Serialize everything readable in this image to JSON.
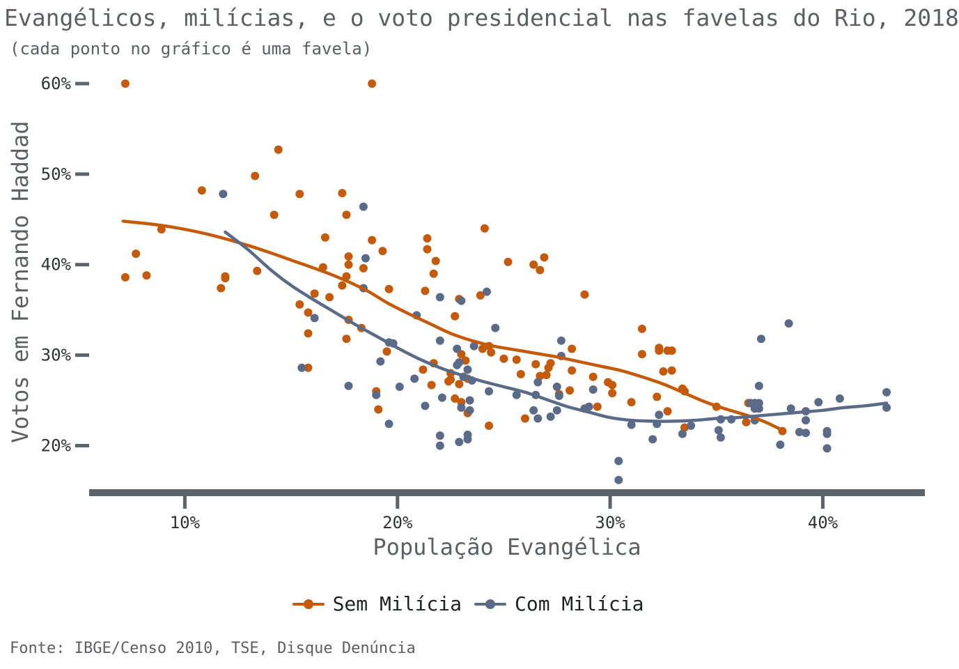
{
  "title": "Evangélicos, milícias, e o voto presidencial nas favelas do Rio, 2018",
  "subtitle": "(cada ponto no gráfico é uma favela)",
  "caption": "Fonte: IBGE/Censo 2010, TSE, Disque Denúncia",
  "chart_data": {
    "type": "scatter",
    "title": "Evangélicos, milícias, e o voto presidencial nas favelas do Rio, 2018",
    "subtitle": "(cada ponto no gráfico é uma favela)",
    "xlabel": "População Evangélica",
    "ylabel": "Votos em Fernando Haddad",
    "xlim": [
      5.5,
      44.8
    ],
    "ylim": [
      14.8,
      62
    ],
    "x_ticks": [
      10,
      20,
      30,
      40
    ],
    "x_tick_labels": [
      "10%",
      "20%",
      "30%",
      "40%"
    ],
    "y_ticks": [
      20,
      30,
      40,
      50,
      60
    ],
    "y_tick_labels": [
      "20%",
      "30%",
      "40%",
      "50%",
      "60%"
    ],
    "grid": false,
    "legend_position": "bottom",
    "series": [
      {
        "name": "Sem Milícia",
        "color": "#c45a0a",
        "points": [
          [
            7.2,
            60
          ],
          [
            18.8,
            60
          ],
          [
            14.4,
            52.7
          ],
          [
            13.3,
            49.8
          ],
          [
            10.8,
            48.2
          ],
          [
            15.4,
            47.8
          ],
          [
            17.4,
            47.9
          ],
          [
            14.2,
            45.5
          ],
          [
            17.6,
            45.5
          ],
          [
            24.1,
            44
          ],
          [
            8.9,
            43.9
          ],
          [
            16.6,
            43
          ],
          [
            21.4,
            42.9
          ],
          [
            18.8,
            42.7
          ],
          [
            7.7,
            41.2
          ],
          [
            19.3,
            41.5
          ],
          [
            21.4,
            41.7
          ],
          [
            26.9,
            40.8
          ],
          [
            17.7,
            40.9
          ],
          [
            25.2,
            40.3
          ],
          [
            21.8,
            40.4
          ],
          [
            26.4,
            40
          ],
          [
            16.5,
            39.7
          ],
          [
            17.7,
            40
          ],
          [
            18.4,
            39.6
          ],
          [
            26.7,
            39.4
          ],
          [
            21.7,
            39
          ],
          [
            13.4,
            39.3
          ],
          [
            8.2,
            38.8
          ],
          [
            7.2,
            38.6
          ],
          [
            11.9,
            38.7
          ],
          [
            17.6,
            38.7
          ],
          [
            11.9,
            38.5
          ],
          [
            17.4,
            37.7
          ],
          [
            11.7,
            37.4
          ],
          [
            19.6,
            37.3
          ],
          [
            21.3,
            37.1
          ],
          [
            23.9,
            36.6
          ],
          [
            28.8,
            36.7
          ],
          [
            16.1,
            36.8
          ],
          [
            16.8,
            36.4
          ],
          [
            22.9,
            36.2
          ],
          [
            15.4,
            35.6
          ],
          [
            15.8,
            34.7
          ],
          [
            22.7,
            34.3
          ],
          [
            17.7,
            33.9
          ],
          [
            18.3,
            33
          ],
          [
            31.5,
            32.9
          ],
          [
            15.8,
            32.4
          ],
          [
            17.6,
            31.8
          ],
          [
            24.3,
            31
          ],
          [
            24,
            30.7
          ],
          [
            24.4,
            30.3
          ],
          [
            28.2,
            30.7
          ],
          [
            32.3,
            30.8
          ],
          [
            32.3,
            30.5
          ],
          [
            32.7,
            30.5
          ],
          [
            32.9,
            30.5
          ],
          [
            19.5,
            30.4
          ],
          [
            31.5,
            30.1
          ],
          [
            23,
            30.1
          ],
          [
            25,
            29.6
          ],
          [
            25.6,
            29.5
          ],
          [
            23.2,
            29.4
          ],
          [
            21.7,
            29.1
          ],
          [
            26.5,
            29
          ],
          [
            27.2,
            29.1
          ],
          [
            27.1,
            28.6
          ],
          [
            28.2,
            28.3
          ],
          [
            32.9,
            28.3
          ],
          [
            32.5,
            28.2
          ],
          [
            15.8,
            28.6
          ],
          [
            21.2,
            28.4
          ],
          [
            22.5,
            28
          ],
          [
            25.8,
            27.9
          ],
          [
            26.7,
            27.7
          ],
          [
            27,
            27.8
          ],
          [
            29.2,
            27.6
          ],
          [
            22.5,
            27.3
          ],
          [
            22.4,
            27.1
          ],
          [
            23.3,
            27.4
          ],
          [
            22.9,
            26.8
          ],
          [
            21.6,
            26.7
          ],
          [
            29.9,
            27
          ],
          [
            30.1,
            26.7
          ],
          [
            33.4,
            26.3
          ],
          [
            33.5,
            26
          ],
          [
            28.1,
            26.1
          ],
          [
            19.0,
            26
          ],
          [
            30.1,
            25.8
          ],
          [
            32.2,
            25.4
          ],
          [
            27.6,
            25.7
          ],
          [
            22.7,
            25.2
          ],
          [
            23.0,
            24.8
          ],
          [
            36.5,
            24.7
          ],
          [
            31.0,
            24.8
          ],
          [
            29.4,
            24.3
          ],
          [
            35.0,
            24.3
          ],
          [
            19.1,
            24
          ],
          [
            32.7,
            23.8
          ],
          [
            23.3,
            23.6
          ],
          [
            26.0,
            23
          ],
          [
            36.4,
            22.6
          ],
          [
            33.5,
            22
          ],
          [
            24.3,
            22.2
          ],
          [
            38.1,
            21.6
          ]
        ]
      },
      {
        "name": "Com Milícia",
        "color": "#5a6b8a",
        "points": [
          [
            11.8,
            47.8
          ],
          [
            18.4,
            46.4
          ],
          [
            18.5,
            40.7
          ],
          [
            24.2,
            37
          ],
          [
            18.4,
            37.4
          ],
          [
            22.0,
            36.4
          ],
          [
            23,
            36
          ],
          [
            20.9,
            34.4
          ],
          [
            16.1,
            34.1
          ],
          [
            24.6,
            33
          ],
          [
            38.4,
            33.5
          ],
          [
            37.1,
            31.8
          ],
          [
            27.7,
            31.6
          ],
          [
            19.6,
            31.4
          ],
          [
            19.8,
            31.3
          ],
          [
            22.0,
            31.6
          ],
          [
            23.6,
            31
          ],
          [
            22.8,
            30.7
          ],
          [
            27.7,
            29.9
          ],
          [
            19.2,
            29.3
          ],
          [
            22.9,
            29.2
          ],
          [
            22.8,
            28.9
          ],
          [
            23.3,
            28.4
          ],
          [
            15.5,
            28.6
          ],
          [
            20.8,
            27.4
          ],
          [
            23.1,
            27.6
          ],
          [
            26.6,
            27
          ],
          [
            23.5,
            27.2
          ],
          [
            17.7,
            26.6
          ],
          [
            20.1,
            26.5
          ],
          [
            37,
            26.6
          ],
          [
            27.5,
            26.5
          ],
          [
            24.3,
            26
          ],
          [
            29.2,
            26.2
          ],
          [
            25.6,
            25.6
          ],
          [
            26.5,
            25.6
          ],
          [
            27.6,
            25.5
          ],
          [
            19,
            25.6
          ],
          [
            22.1,
            25.3
          ],
          [
            23.4,
            25
          ],
          [
            36.6,
            24.7
          ],
          [
            36.8,
            24.7
          ],
          [
            37,
            24.7
          ],
          [
            21.3,
            24.4
          ],
          [
            29.0,
            24.3
          ],
          [
            36.8,
            24.1
          ],
          [
            37,
            24.1
          ],
          [
            38.5,
            24.1
          ],
          [
            39.2,
            23.8
          ],
          [
            23.0,
            24.2
          ],
          [
            23.4,
            23.9
          ],
          [
            26.4,
            23.9
          ],
          [
            27.5,
            23.9
          ],
          [
            28.8,
            24.1
          ],
          [
            32.3,
            23.4
          ],
          [
            27.2,
            23.2
          ],
          [
            26.6,
            23
          ],
          [
            35.2,
            22.9
          ],
          [
            35.7,
            22.9
          ],
          [
            36.8,
            22.8
          ],
          [
            39.2,
            22.8
          ],
          [
            31.0,
            22.3
          ],
          [
            32.2,
            22.4
          ],
          [
            33.8,
            22.2
          ],
          [
            35.1,
            21.7
          ],
          [
            38.9,
            21.5
          ],
          [
            39.2,
            21.4
          ],
          [
            40.2,
            21.6
          ],
          [
            40.2,
            21.3
          ],
          [
            33.4,
            21.3
          ],
          [
            23.3,
            21.2
          ],
          [
            22.0,
            21.1
          ],
          [
            35.2,
            20.9
          ],
          [
            23.3,
            20.7
          ],
          [
            32.0,
            20.7
          ],
          [
            22.9,
            20.4
          ],
          [
            22,
            20
          ],
          [
            38,
            20.1
          ],
          [
            40.2,
            19.7
          ],
          [
            19.6,
            22.4
          ],
          [
            30.4,
            18.3
          ],
          [
            30.4,
            16.2
          ],
          [
            39.8,
            24.8
          ],
          [
            40.8,
            25.2
          ],
          [
            43,
            25.9
          ],
          [
            43,
            24.2
          ]
        ]
      }
    ],
    "trend_lines": [
      {
        "name": "Sem Milícia",
        "color": "#c45a0a",
        "points": [
          [
            7.1,
            44.8
          ],
          [
            9,
            44.3
          ],
          [
            11,
            43.4
          ],
          [
            13,
            42.1
          ],
          [
            15,
            40.5
          ],
          [
            17,
            38.8
          ],
          [
            18.5,
            37.2
          ],
          [
            19.5,
            35.8
          ],
          [
            20.5,
            34.6
          ],
          [
            21.5,
            33.5
          ],
          [
            22.5,
            32.4
          ],
          [
            23.5,
            31.6
          ],
          [
            24.5,
            31
          ],
          [
            25.5,
            30.6
          ],
          [
            26.5,
            30.2
          ],
          [
            27.5,
            29.8
          ],
          [
            28.5,
            29.3
          ],
          [
            29.5,
            28.8
          ],
          [
            30.5,
            28.3
          ],
          [
            31.5,
            27.6
          ],
          [
            32.5,
            26.8
          ],
          [
            33.5,
            25.8
          ],
          [
            34.5,
            24.8
          ],
          [
            35.5,
            24
          ],
          [
            36.5,
            23.3
          ],
          [
            37.3,
            22.6
          ],
          [
            38.1,
            21.7
          ]
        ]
      },
      {
        "name": "Com Milícia",
        "color": "#5a6b8a",
        "points": [
          [
            11.9,
            43.6
          ],
          [
            13,
            41.6
          ],
          [
            14,
            39.5
          ],
          [
            15,
            37.7
          ],
          [
            16,
            36.2
          ],
          [
            17,
            34.8
          ],
          [
            18,
            33.4
          ],
          [
            19,
            32.1
          ],
          [
            20,
            30.8
          ],
          [
            21,
            29.6
          ],
          [
            22,
            28.6
          ],
          [
            23,
            27.8
          ],
          [
            24,
            27.1
          ],
          [
            25,
            26.5
          ],
          [
            26,
            25.9
          ],
          [
            27,
            25.1
          ],
          [
            28,
            24.3
          ],
          [
            29,
            23.7
          ],
          [
            30,
            23.1
          ],
          [
            31,
            22.8
          ],
          [
            32,
            22.7
          ],
          [
            33,
            22.7
          ],
          [
            34,
            22.8
          ],
          [
            35,
            23
          ],
          [
            36,
            23.1
          ],
          [
            37,
            23.3
          ],
          [
            38,
            23.5
          ],
          [
            39,
            23.7
          ],
          [
            40,
            23.9
          ],
          [
            41,
            24.2
          ],
          [
            42,
            24.4
          ],
          [
            43,
            24.7
          ]
        ]
      }
    ]
  }
}
